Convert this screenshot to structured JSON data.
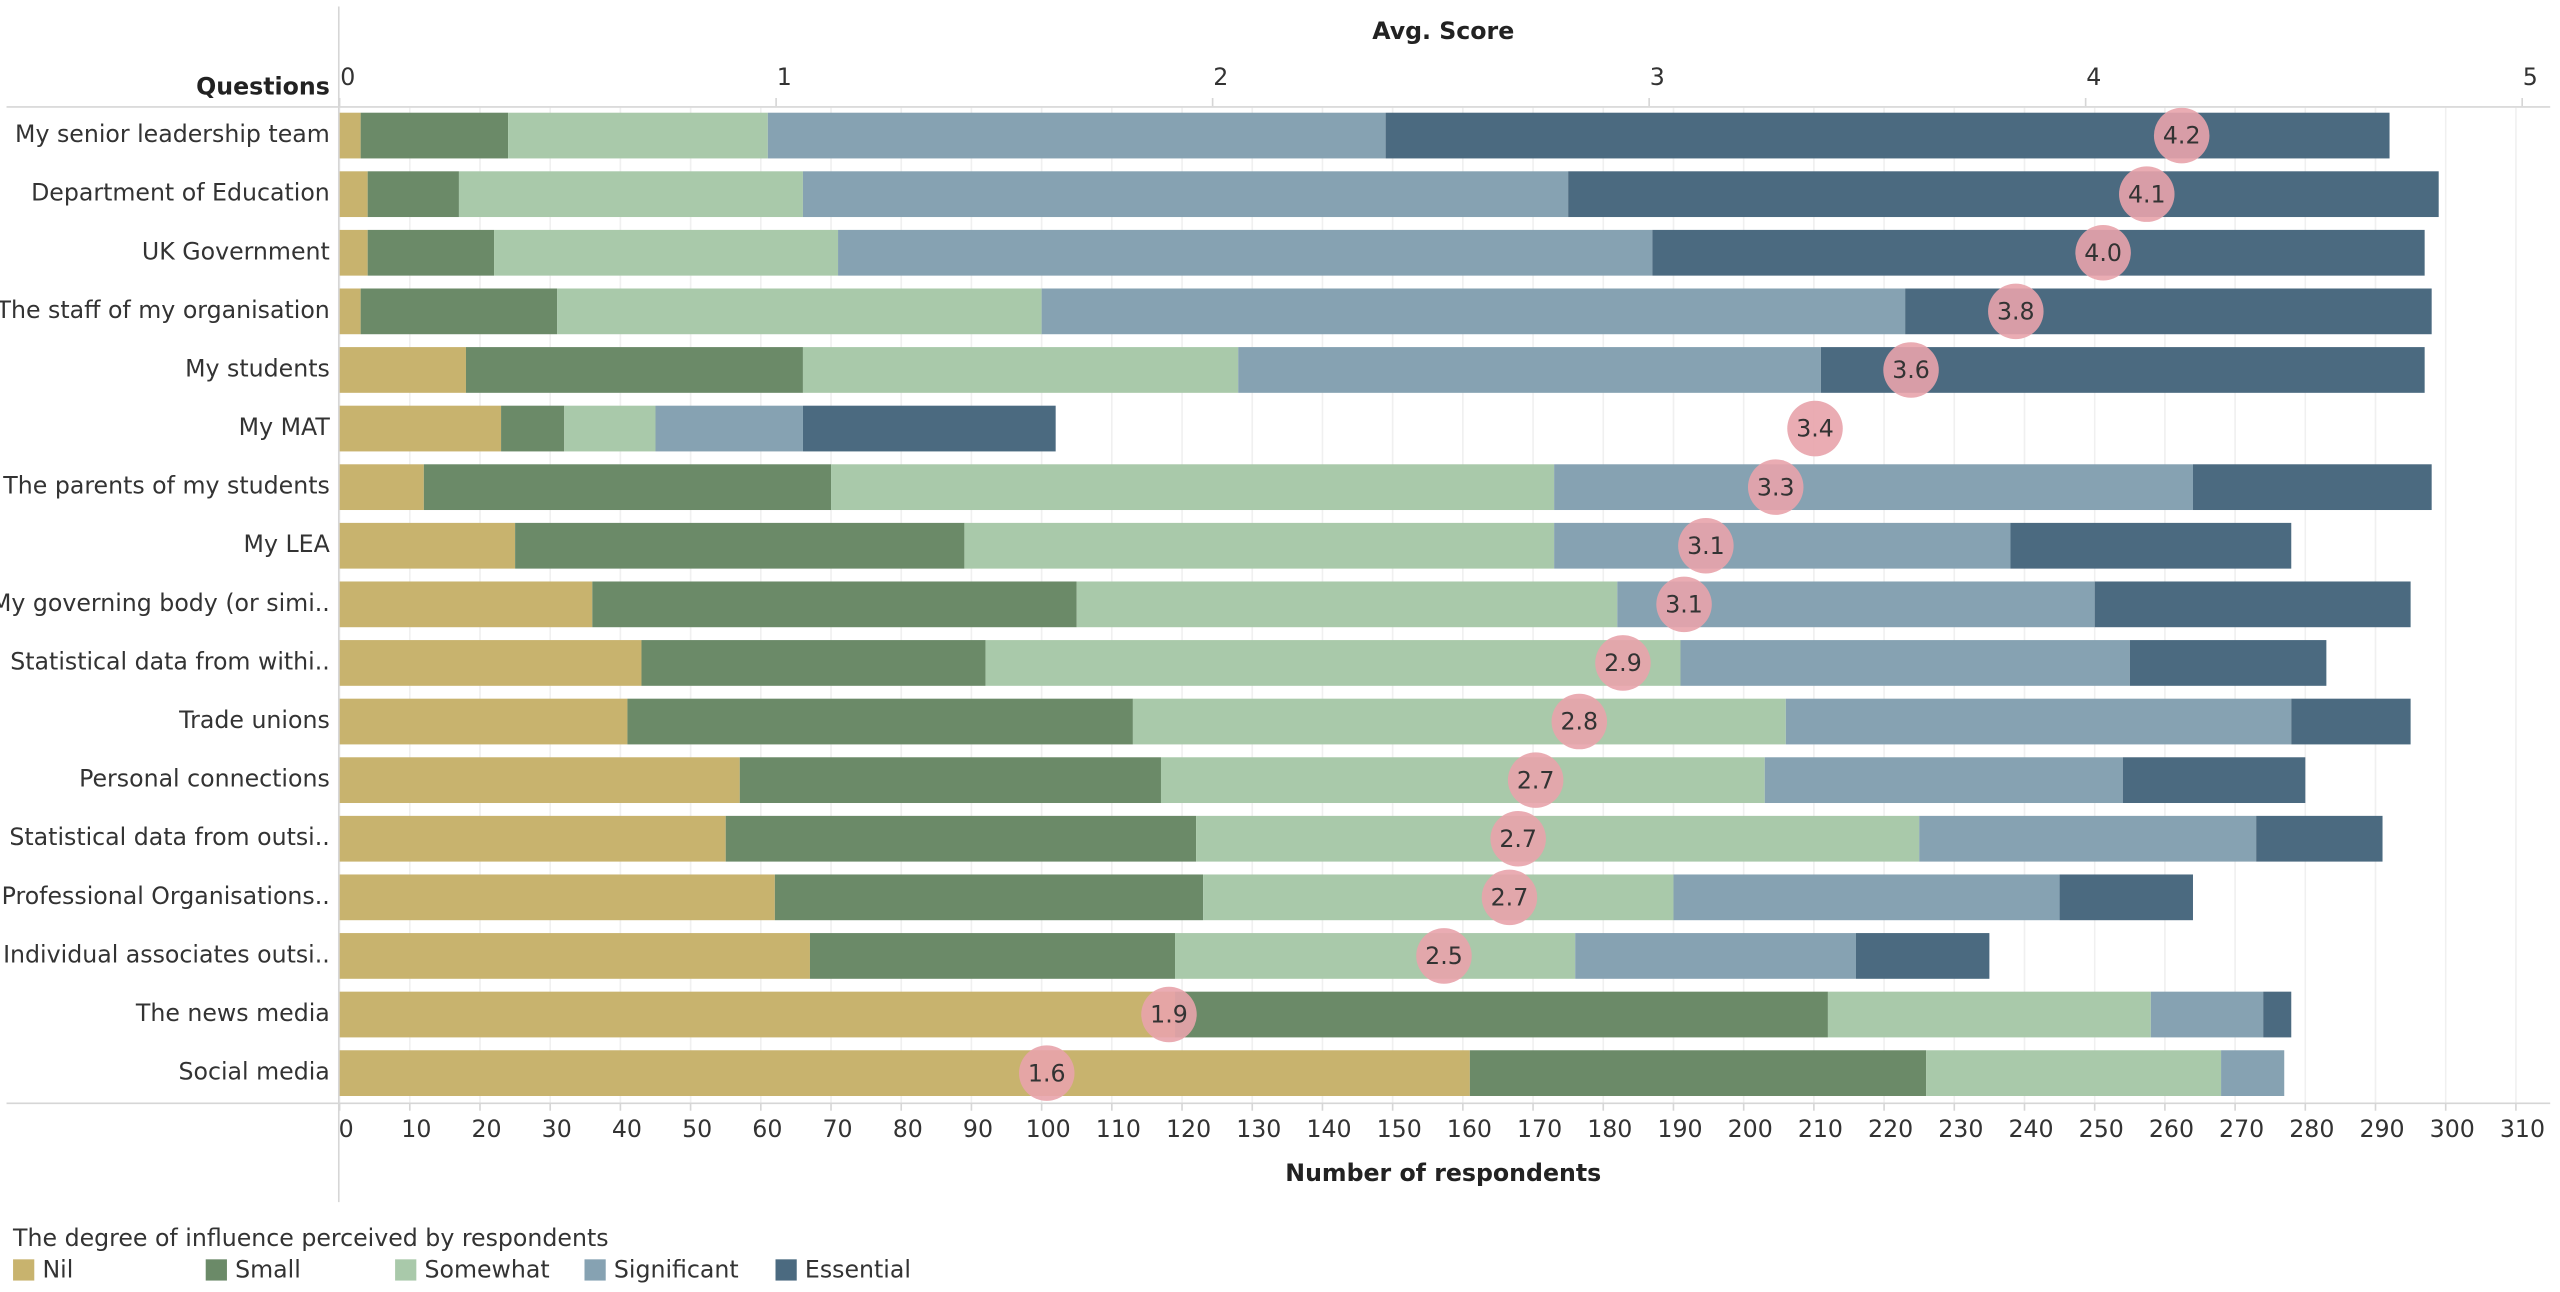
{
  "chart_data": {
    "type": "bar",
    "stacked": true,
    "orientation": "horizontal",
    "y_label": "Questions",
    "x_label": "Number of respondents",
    "x2_label": "Avg. Score",
    "legend_title": "The degree of influence perceived by respondents",
    "categories": [
      "My senior leadership team",
      "Department of Education",
      "UK Government",
      "The staff of my organisation",
      "My students",
      "My MAT",
      "The parents of my students",
      "My LEA",
      "My governing body (or simi..",
      "Statistical data from withi..",
      "Trade unions",
      "Personal connections",
      "Statistical data from outsi..",
      "Professional Organisations..",
      "Individual associates outsi..",
      "The news media",
      "Social media"
    ],
    "series": [
      {
        "name": "Nil",
        "color": "#c8b36e",
        "values": [
          3,
          4,
          4,
          3,
          18,
          23,
          12,
          25,
          36,
          43,
          41,
          57,
          55,
          62,
          67,
          119,
          161
        ]
      },
      {
        "name": "Small",
        "color": "#6b8a68",
        "values": [
          21,
          13,
          18,
          28,
          48,
          9,
          58,
          64,
          69,
          49,
          72,
          60,
          67,
          61,
          52,
          93,
          65
        ]
      },
      {
        "name": "Somewhat",
        "color": "#a9c9aa",
        "values": [
          37,
          49,
          49,
          69,
          62,
          13,
          103,
          84,
          77,
          99,
          93,
          86,
          103,
          67,
          57,
          46,
          42
        ]
      },
      {
        "name": "Significant",
        "color": "#86a2b2",
        "values": [
          88,
          109,
          116,
          123,
          83,
          21,
          91,
          65,
          68,
          64,
          72,
          51,
          48,
          55,
          40,
          16,
          9
        ]
      },
      {
        "name": "Essential",
        "color": "#4b6a80",
        "values": [
          143,
          124,
          110,
          75,
          86,
          36,
          34,
          40,
          45,
          28,
          17,
          26,
          18,
          19,
          19,
          4,
          0
        ]
      }
    ],
    "avg_score": {
      "axis": "x2",
      "color": "#e8a3ab",
      "values": [
        4.22,
        4.14,
        4.04,
        3.84,
        3.6,
        3.38,
        3.29,
        3.13,
        3.08,
        2.94,
        2.84,
        2.74,
        2.7,
        2.68,
        2.53,
        1.9,
        1.62
      ],
      "value_labels": [
        "4.2",
        "4.1",
        "4.0",
        "3.8",
        "3.6",
        "3.4",
        "3.3",
        "3.1",
        "3.1",
        "2.9",
        "2.8",
        "2.7",
        "2.7",
        "2.7",
        "2.5",
        "1.9",
        "1.6"
      ]
    },
    "xlim": [
      0,
      314
    ],
    "xticks": [
      0,
      10,
      20,
      30,
      40,
      50,
      60,
      70,
      80,
      90,
      100,
      110,
      120,
      130,
      140,
      150,
      160,
      170,
      180,
      190,
      200,
      210,
      220,
      230,
      240,
      250,
      260,
      270,
      280,
      290,
      300,
      310
    ],
    "x2lim": [
      0,
      5.05
    ],
    "x2ticks": [
      0,
      1,
      2,
      3,
      4,
      5
    ],
    "grid": true
  }
}
